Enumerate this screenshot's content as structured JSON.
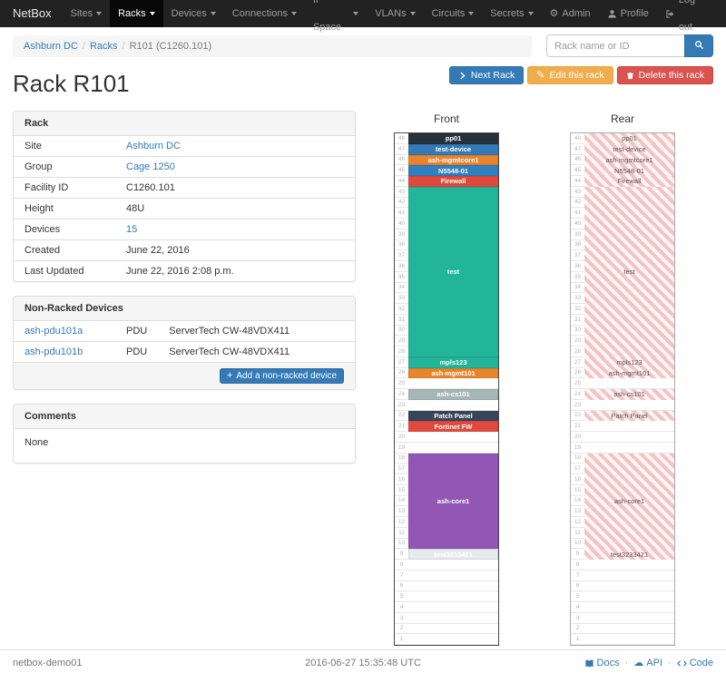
{
  "navbar": {
    "brand": "NetBox",
    "items": [
      {
        "label": "Sites",
        "active": false
      },
      {
        "label": "Racks",
        "active": true
      },
      {
        "label": "Devices",
        "active": false
      },
      {
        "label": "Connections",
        "active": false
      },
      {
        "label": "IP Space",
        "active": false
      },
      {
        "label": "VLANs",
        "active": false
      },
      {
        "label": "Circuits",
        "active": false
      },
      {
        "label": "Secrets",
        "active": false
      }
    ],
    "user_items": [
      {
        "label": "Admin",
        "icon": "gear-icon"
      },
      {
        "label": "Profile",
        "icon": "user-icon"
      },
      {
        "label": "Log out",
        "icon": "logout-icon"
      }
    ]
  },
  "breadcrumb": {
    "items": [
      "Ashburn DC",
      "Racks",
      "R101 (C1260.101)"
    ]
  },
  "search": {
    "placeholder": "Rack name or ID"
  },
  "actions": [
    {
      "label": "Next Rack",
      "style": "primary",
      "icon": "chevron-right-icon"
    },
    {
      "label": "Edit this rack",
      "style": "warning",
      "icon": "pencil-icon"
    },
    {
      "label": "Delete this rack",
      "style": "danger",
      "icon": "trash-icon"
    }
  ],
  "page_title": "Rack R101",
  "panels": {
    "rack": {
      "title": "Rack",
      "rows": [
        {
          "label": "Site",
          "value": "Ashburn DC",
          "is_link": true
        },
        {
          "label": "Group",
          "value": "Cage 1250",
          "is_link": true
        },
        {
          "label": "Facility ID",
          "value": "C1260.101",
          "is_link": false
        },
        {
          "label": "Height",
          "value": "48U",
          "is_link": false
        },
        {
          "label": "Devices",
          "value": "15",
          "is_link": true
        },
        {
          "label": "Created",
          "value": "June 22, 2016",
          "is_link": false
        },
        {
          "label": "Last Updated",
          "value": "June 22, 2016 2:08 p.m.",
          "is_link": false
        }
      ]
    },
    "non_racked": {
      "title": "Non-Racked Devices",
      "rows": [
        {
          "name": "ash-pdu101a",
          "role": "PDU",
          "type": "ServerTech CW-48VDX411"
        },
        {
          "name": "ash-pdu101b",
          "role": "PDU",
          "type": "ServerTech CW-48VDX411"
        }
      ],
      "add_label": "Add a non-racked device"
    },
    "comments": {
      "title": "Comments",
      "body": "None"
    }
  },
  "elevation": {
    "front_title": "Front",
    "rear_title": "Rear",
    "units_total": 48,
    "devices": [
      {
        "name": "pp01",
        "top_u": 48,
        "u_height": 1,
        "color": "#27313e",
        "full_depth": true
      },
      {
        "name": "test-device",
        "top_u": 47,
        "u_height": 1,
        "color": "#337ab7",
        "full_depth": true
      },
      {
        "name": "ash-mgmtcore1",
        "top_u": 46,
        "u_height": 1,
        "color": "#e8842b",
        "full_depth": true
      },
      {
        "name": "N5548-01",
        "top_u": 45,
        "u_height": 1,
        "color": "#2f7fc1",
        "full_depth": true
      },
      {
        "name": "Firewall",
        "top_u": 44,
        "u_height": 1,
        "color": "#e0493d",
        "full_depth": true
      },
      {
        "name": "test",
        "top_u": 43,
        "u_height": 16,
        "color": "#23b59a",
        "full_depth": true
      },
      {
        "name": "mpls123",
        "top_u": 27,
        "u_height": 1,
        "color": "#23b59a",
        "full_depth": true
      },
      {
        "name": "ash-mgmt101",
        "top_u": 26,
        "u_height": 1,
        "color": "#e8842b",
        "full_depth": true
      },
      {
        "name": "ash-cs101",
        "top_u": 24,
        "u_height": 1,
        "color": "#a6b5b8",
        "full_depth": true
      },
      {
        "name": "Patch Panel",
        "top_u": 22,
        "u_height": 1,
        "color": "#36465a",
        "full_depth": true
      },
      {
        "name": "Fortinet FW",
        "top_u": 21,
        "u_height": 1,
        "color": "#e0493d",
        "full_depth": false
      },
      {
        "name": "ash-core1",
        "top_u": 18,
        "u_height": 9,
        "color": "#9256b4",
        "full_depth": true
      },
      {
        "name": "test3233421",
        "top_u": 9,
        "u_height": 1,
        "color": "#e6eaec",
        "full_depth": true
      }
    ]
  },
  "footer": {
    "hostname": "netbox-demo01",
    "timestamp": "2016-06-27 15:35:48 UTC",
    "links": [
      {
        "label": "Docs",
        "icon": "book-icon"
      },
      {
        "label": "API",
        "icon": "cloud-icon"
      },
      {
        "label": "Code",
        "icon": "code-icon"
      }
    ]
  }
}
